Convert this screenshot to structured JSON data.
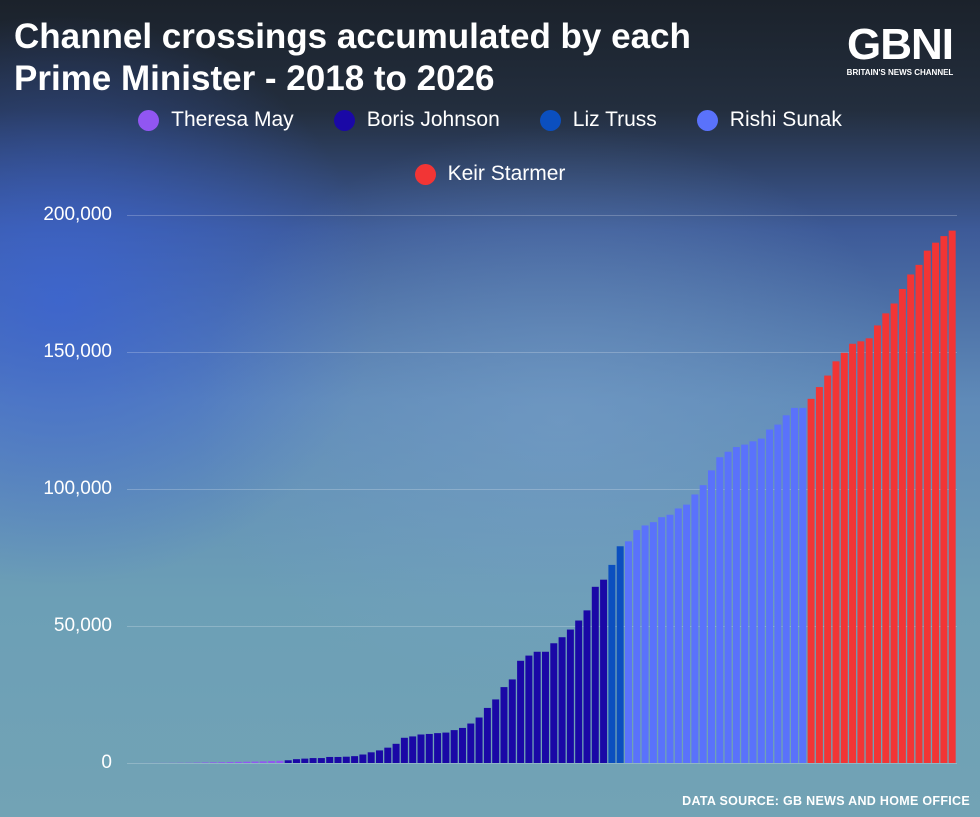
{
  "logo": {
    "mark": "GBNI",
    "tagline": "BRITAIN'S NEWS CHANNEL"
  },
  "source": "DATA SOURCE: GB NEWS AND HOME OFFICE",
  "chart_data": {
    "type": "bar",
    "title": "Channel crossings accumulated by each Prime Minister - 2018 to 2026",
    "xlabel": "",
    "ylabel": "",
    "ylim": [
      0,
      200000
    ],
    "yticks": [
      "0",
      "50,000",
      "100,000",
      "150,000",
      "200,000"
    ],
    "ytick_values": [
      0,
      50000,
      100000,
      150000,
      200000
    ],
    "grid": true,
    "legend_position": "top",
    "series": [
      {
        "name": "Theresa May",
        "color": "#9156f2",
        "values": [
          0,
          10,
          20,
          30,
          40,
          60,
          80,
          100,
          150,
          200,
          250,
          300,
          350,
          400,
          450,
          500,
          600,
          700,
          800
        ]
      },
      {
        "name": "Boris Johnson",
        "color": "#1a08a6",
        "values": [
          1000,
          1400,
          1600,
          1800,
          1800,
          2200,
          2200,
          2300,
          2500,
          3100,
          3900,
          4600,
          5600,
          7000,
          9200,
          9700,
          10400,
          10600,
          10900,
          11100,
          12000,
          12800,
          14400,
          16600,
          20100,
          23200,
          27700,
          30500,
          37300,
          39200,
          40600,
          40600,
          43700,
          45900,
          48700,
          52000,
          55700,
          64300,
          66900
        ]
      },
      {
        "name": "Liz Truss",
        "color": "#0b4fbf",
        "values": [
          72300,
          79100
        ]
      },
      {
        "name": "Rishi Sunak",
        "color": "#5a72fb",
        "values": [
          80900,
          85000,
          86700,
          87900,
          89700,
          90600,
          92900,
          94300,
          98000,
          101400,
          106800,
          111600,
          113600,
          115300,
          116200,
          117400,
          118400,
          121700,
          123500,
          126900,
          129600,
          129600
        ]
      },
      {
        "name": "Keir Starmer",
        "color": "#f23535",
        "values": [
          132900,
          137200,
          141400,
          146600,
          149700,
          153000,
          153900,
          155000,
          159700,
          164100,
          167700,
          173000,
          178300,
          181800,
          187000,
          189900,
          192300,
          194300
        ]
      }
    ]
  }
}
